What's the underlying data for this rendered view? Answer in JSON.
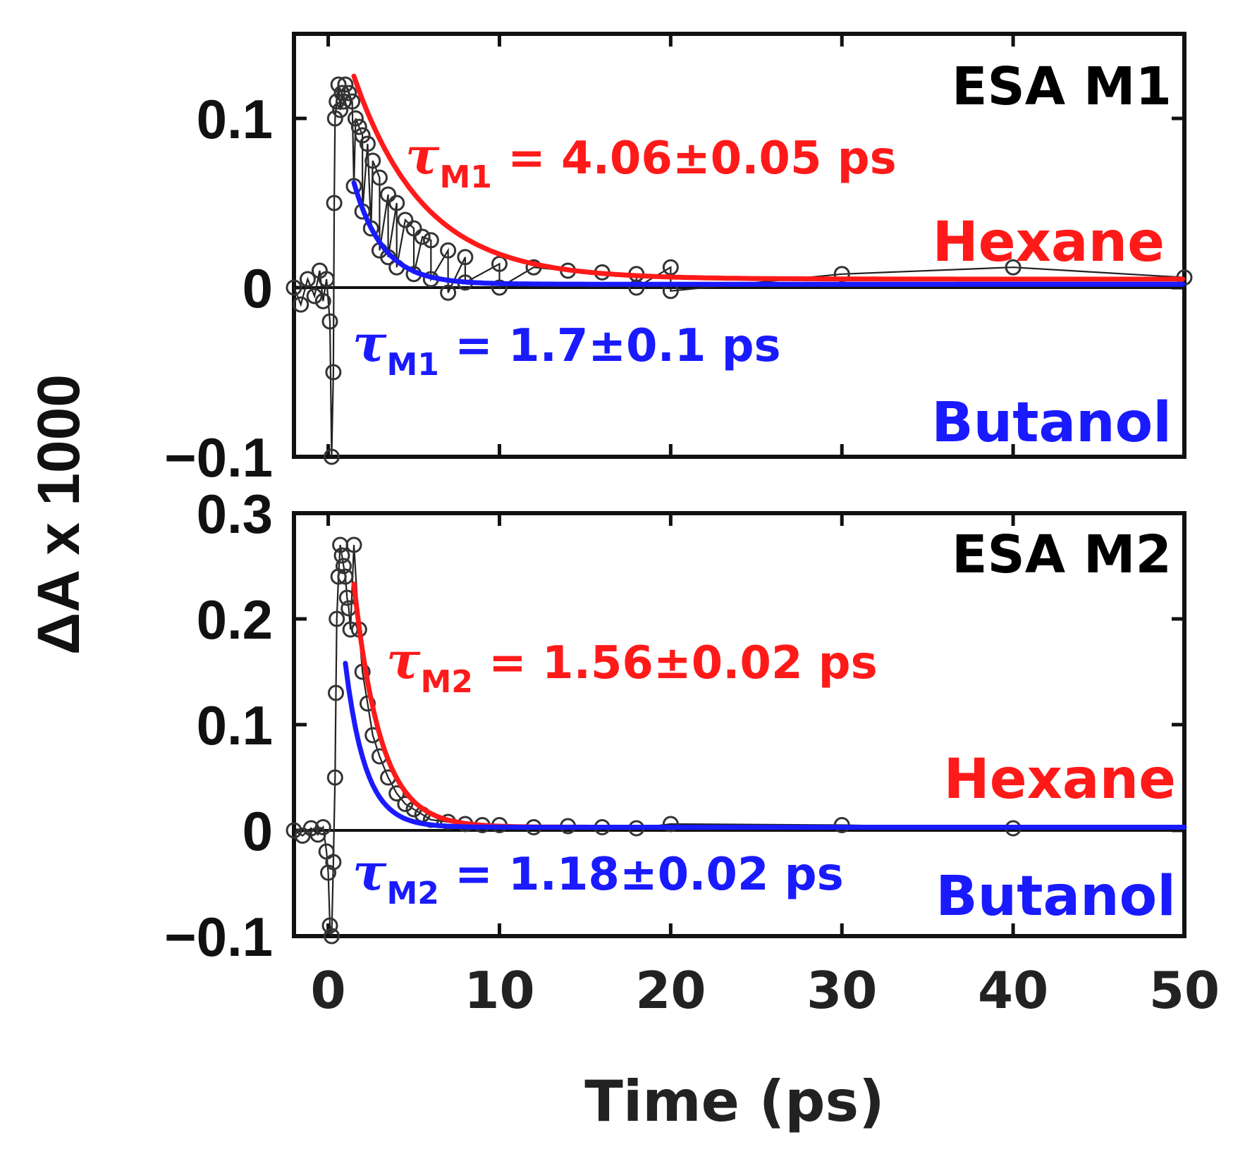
{
  "chart_data": {
    "type": "scatter",
    "y_axis_label": "ΔA x 1000",
    "x_axis": {
      "label": "Time (ps)",
      "range": [
        -2,
        50
      ],
      "ticks": [
        0,
        10,
        20,
        30,
        40,
        50
      ],
      "tick_labels": [
        "0",
        "10",
        "20",
        "30",
        "40",
        "50"
      ]
    },
    "panels": [
      {
        "id": "m1",
        "title": "ESA M1",
        "ylim": [
          -0.1,
          0.15
        ],
        "yticks": [
          -0.1,
          0,
          0.1
        ],
        "ytick_labels": [
          "−0.1",
          "0",
          "0.1"
        ],
        "fits": [
          {
            "solvent": "Hexane",
            "color": "#ff1a1a",
            "tau_prefix": "τ",
            "tau_sub": "M1",
            "tau_text": " = 4.06±0.05 ps",
            "tau": 4.06,
            "amplitude": 0.12,
            "offset": 0.005,
            "t_start": 1.5,
            "t_end": 50
          },
          {
            "solvent": "Butanol",
            "color": "#1a1aff",
            "tau_prefix": "τ",
            "tau_sub": "M1",
            "tau_text": " = 1.7±0.1 ps",
            "tau": 1.7,
            "amplitude": 0.06,
            "offset": 0.002,
            "t_start": 1.5,
            "t_end": 50
          }
        ],
        "data_points": [
          [
            -2,
            0
          ],
          [
            -1.6,
            -0.01
          ],
          [
            -1.2,
            0.005
          ],
          [
            -0.8,
            -0.005
          ],
          [
            -0.5,
            0.01
          ],
          [
            -0.3,
            -0.008
          ],
          [
            -0.1,
            0.005
          ],
          [
            0.1,
            -0.02
          ],
          [
            0.2,
            -0.1
          ],
          [
            0.3,
            -0.05
          ],
          [
            0.35,
            0.05
          ],
          [
            0.4,
            0.1
          ],
          [
            0.5,
            0.11
          ],
          [
            0.6,
            0.12
          ],
          [
            0.7,
            0.105
          ],
          [
            0.8,
            0.115
          ],
          [
            0.9,
            0.11
          ],
          [
            1.0,
            0.12
          ],
          [
            1.2,
            0.115
          ],
          [
            1.4,
            0.11
          ],
          [
            1.6,
            0.1
          ],
          [
            1.8,
            0.095
          ],
          [
            2.0,
            0.09
          ],
          [
            2.3,
            0.085
          ],
          [
            2.6,
            0.075
          ],
          [
            3.0,
            0.065
          ],
          [
            3.5,
            0.055
          ],
          [
            4.0,
            0.05
          ],
          [
            4.5,
            0.04
          ],
          [
            5.0,
            0.035
          ],
          [
            5.5,
            0.03
          ],
          [
            6.0,
            0.028
          ],
          [
            7.0,
            0.022
          ],
          [
            8.0,
            0.018
          ],
          [
            10.0,
            0.014
          ],
          [
            12.0,
            0.012
          ],
          [
            14.0,
            0.01
          ],
          [
            16.0,
            0.009
          ],
          [
            18.0,
            0.008
          ],
          [
            20.0,
            0.012
          ],
          [
            30.0,
            0.008
          ],
          [
            40.0,
            0.012
          ],
          [
            50.0,
            0.006
          ],
          [
            1.5,
            0.06
          ],
          [
            2.0,
            0.045
          ],
          [
            2.5,
            0.035
          ],
          [
            3.0,
            0.022
          ],
          [
            3.5,
            0.018
          ],
          [
            4.0,
            0.012
          ],
          [
            5.0,
            0.008
          ],
          [
            6.0,
            0.005
          ],
          [
            7.0,
            -0.003
          ],
          [
            8.0,
            0.003
          ],
          [
            10.0,
            0.0
          ],
          [
            18.0,
            0.0
          ],
          [
            20.0,
            -0.002
          ]
        ]
      },
      {
        "id": "m2",
        "title": "ESA M2",
        "ylim": [
          -0.1,
          0.3
        ],
        "yticks": [
          -0.1,
          0,
          0.1,
          0.2,
          0.3
        ],
        "ytick_labels": [
          "−0.1",
          "0",
          "0.1",
          "0.2",
          "0.3"
        ],
        "fits": [
          {
            "solvent": "Hexane",
            "color": "#ff1a1a",
            "tau_prefix": "τ",
            "tau_sub": "M2",
            "tau_text": " = 1.56±0.02 ps",
            "tau": 1.56,
            "amplitude": 0.23,
            "offset": 0.003,
            "t_start": 1.5,
            "t_end": 50
          },
          {
            "solvent": "Butanol",
            "color": "#1a1aff",
            "tau_prefix": "τ",
            "tau_sub": "M2",
            "tau_text": " = 1.18±0.02 ps",
            "tau": 1.18,
            "amplitude": 0.155,
            "offset": 0.003,
            "t_start": 1.0,
            "t_end": 50
          }
        ],
        "data_points": [
          [
            -2,
            0
          ],
          [
            -1.5,
            -0.005
          ],
          [
            -1.0,
            0.002
          ],
          [
            -0.6,
            -0.004
          ],
          [
            -0.3,
            0.003
          ],
          [
            -0.1,
            -0.02
          ],
          [
            0.0,
            -0.04
          ],
          [
            0.1,
            -0.09
          ],
          [
            0.2,
            -0.1
          ],
          [
            0.3,
            -0.03
          ],
          [
            0.4,
            0.05
          ],
          [
            0.45,
            0.13
          ],
          [
            0.5,
            0.2
          ],
          [
            0.6,
            0.24
          ],
          [
            0.7,
            0.27
          ],
          [
            0.8,
            0.26
          ],
          [
            0.9,
            0.25
          ],
          [
            1.0,
            0.24
          ],
          [
            1.1,
            0.22
          ],
          [
            1.2,
            0.21
          ],
          [
            1.3,
            0.19
          ],
          [
            1.5,
            0.27
          ],
          [
            1.8,
            0.19
          ],
          [
            2.0,
            0.15
          ],
          [
            2.3,
            0.12
          ],
          [
            2.6,
            0.09
          ],
          [
            3.0,
            0.07
          ],
          [
            3.5,
            0.05
          ],
          [
            4.0,
            0.035
          ],
          [
            4.5,
            0.025
          ],
          [
            5.0,
            0.02
          ],
          [
            5.5,
            0.015
          ],
          [
            6.0,
            0.01
          ],
          [
            7.0,
            0.008
          ],
          [
            8.0,
            0.006
          ],
          [
            9.0,
            0.005
          ],
          [
            10.0,
            0.005
          ],
          [
            12.0,
            0.003
          ],
          [
            14.0,
            0.004
          ],
          [
            16.0,
            0.003
          ],
          [
            18.0,
            0.002
          ],
          [
            20.0,
            0.006
          ],
          [
            30.0,
            0.005
          ],
          [
            40.0,
            0.002
          ]
        ]
      }
    ]
  }
}
